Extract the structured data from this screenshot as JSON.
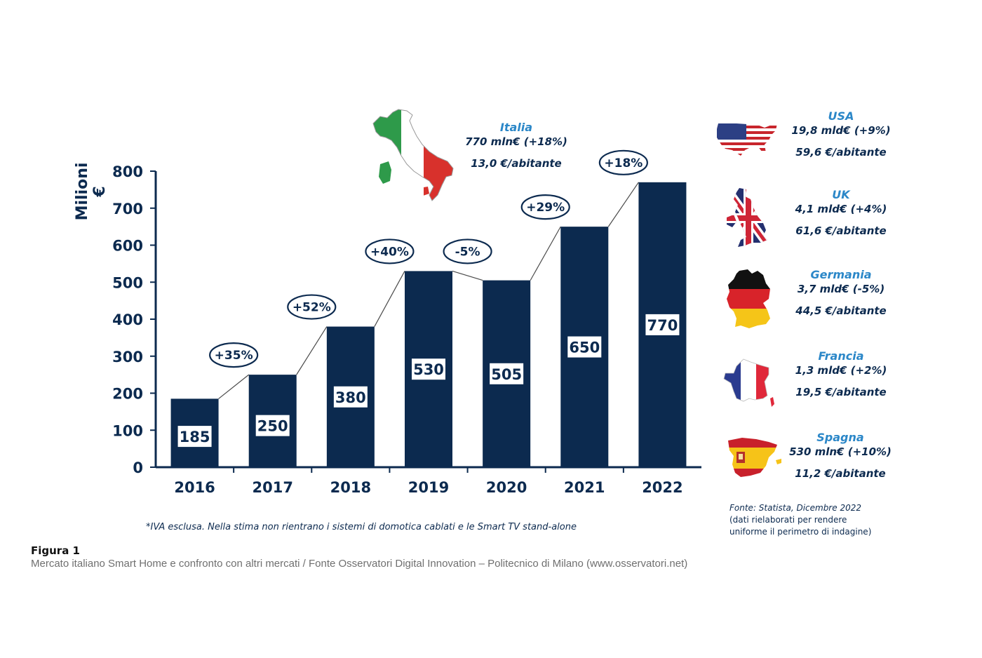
{
  "chart_data": {
    "type": "bar",
    "ylabel": "Milioni €",
    "ylim": [
      0,
      800
    ],
    "yticks": [
      "0",
      "100",
      "200",
      "300",
      "400",
      "500",
      "600",
      "700",
      "800"
    ],
    "categories": [
      "2016",
      "2017",
      "2018",
      "2019",
      "2020",
      "2021",
      "2022"
    ],
    "values": [
      185,
      250,
      380,
      530,
      505,
      650,
      770
    ],
    "value_labels": [
      "185",
      "250",
      "380",
      "530",
      "505",
      "650",
      "770"
    ],
    "growth_labels": [
      "+35%",
      "+52%",
      "+40%",
      "-5%",
      "+29%",
      "+18%"
    ],
    "grid": false
  },
  "colors": {
    "bar": "#0c2a4f",
    "axis": "#0c2a4f",
    "country_name": "#2b87c8"
  },
  "italia": {
    "name": "Italia",
    "market": "770 mln€ (+18%)",
    "per_capita": "13,0 €/abitante"
  },
  "countries": [
    {
      "name": "USA",
      "market": "19,8 mld€ (+9%)",
      "per_capita": "59,6 €/abitante",
      "icon": "usa-flag-map-icon"
    },
    {
      "name": "UK",
      "market": "4,1 mld€ (+4%)",
      "per_capita": "61,6 €/abitante",
      "icon": "uk-flag-map-icon"
    },
    {
      "name": "Germania",
      "market": "3,7 mld€ (-5%)",
      "per_capita": "44,5 €/abitante",
      "icon": "germany-flag-map-icon"
    },
    {
      "name": "Francia",
      "market": "1,3 mld€ (+2%)",
      "per_capita": "19,5 €/abitante",
      "icon": "france-flag-map-icon"
    },
    {
      "name": "Spagna",
      "market": "530 mln€  (+10%)",
      "per_capita": "11,2 €/abitante",
      "icon": "spain-flag-map-icon"
    }
  ],
  "note": "*IVA esclusa. Nella stima non rientrano i sistemi di domotica cablati e le Smart TV stand-alone",
  "source": {
    "line1": "Fonte: Statista, Dicembre 2022",
    "line2": "(dati rielaborati per rendere",
    "line3": "uniforme il perimetro di indagine)"
  },
  "figure": {
    "label": "Figura 1",
    "caption": "Mercato italiano Smart Home e confronto con altri mercati / Fonte Osservatori Digital Innovation – Politecnico di Milano (www.osservatori.net)"
  }
}
